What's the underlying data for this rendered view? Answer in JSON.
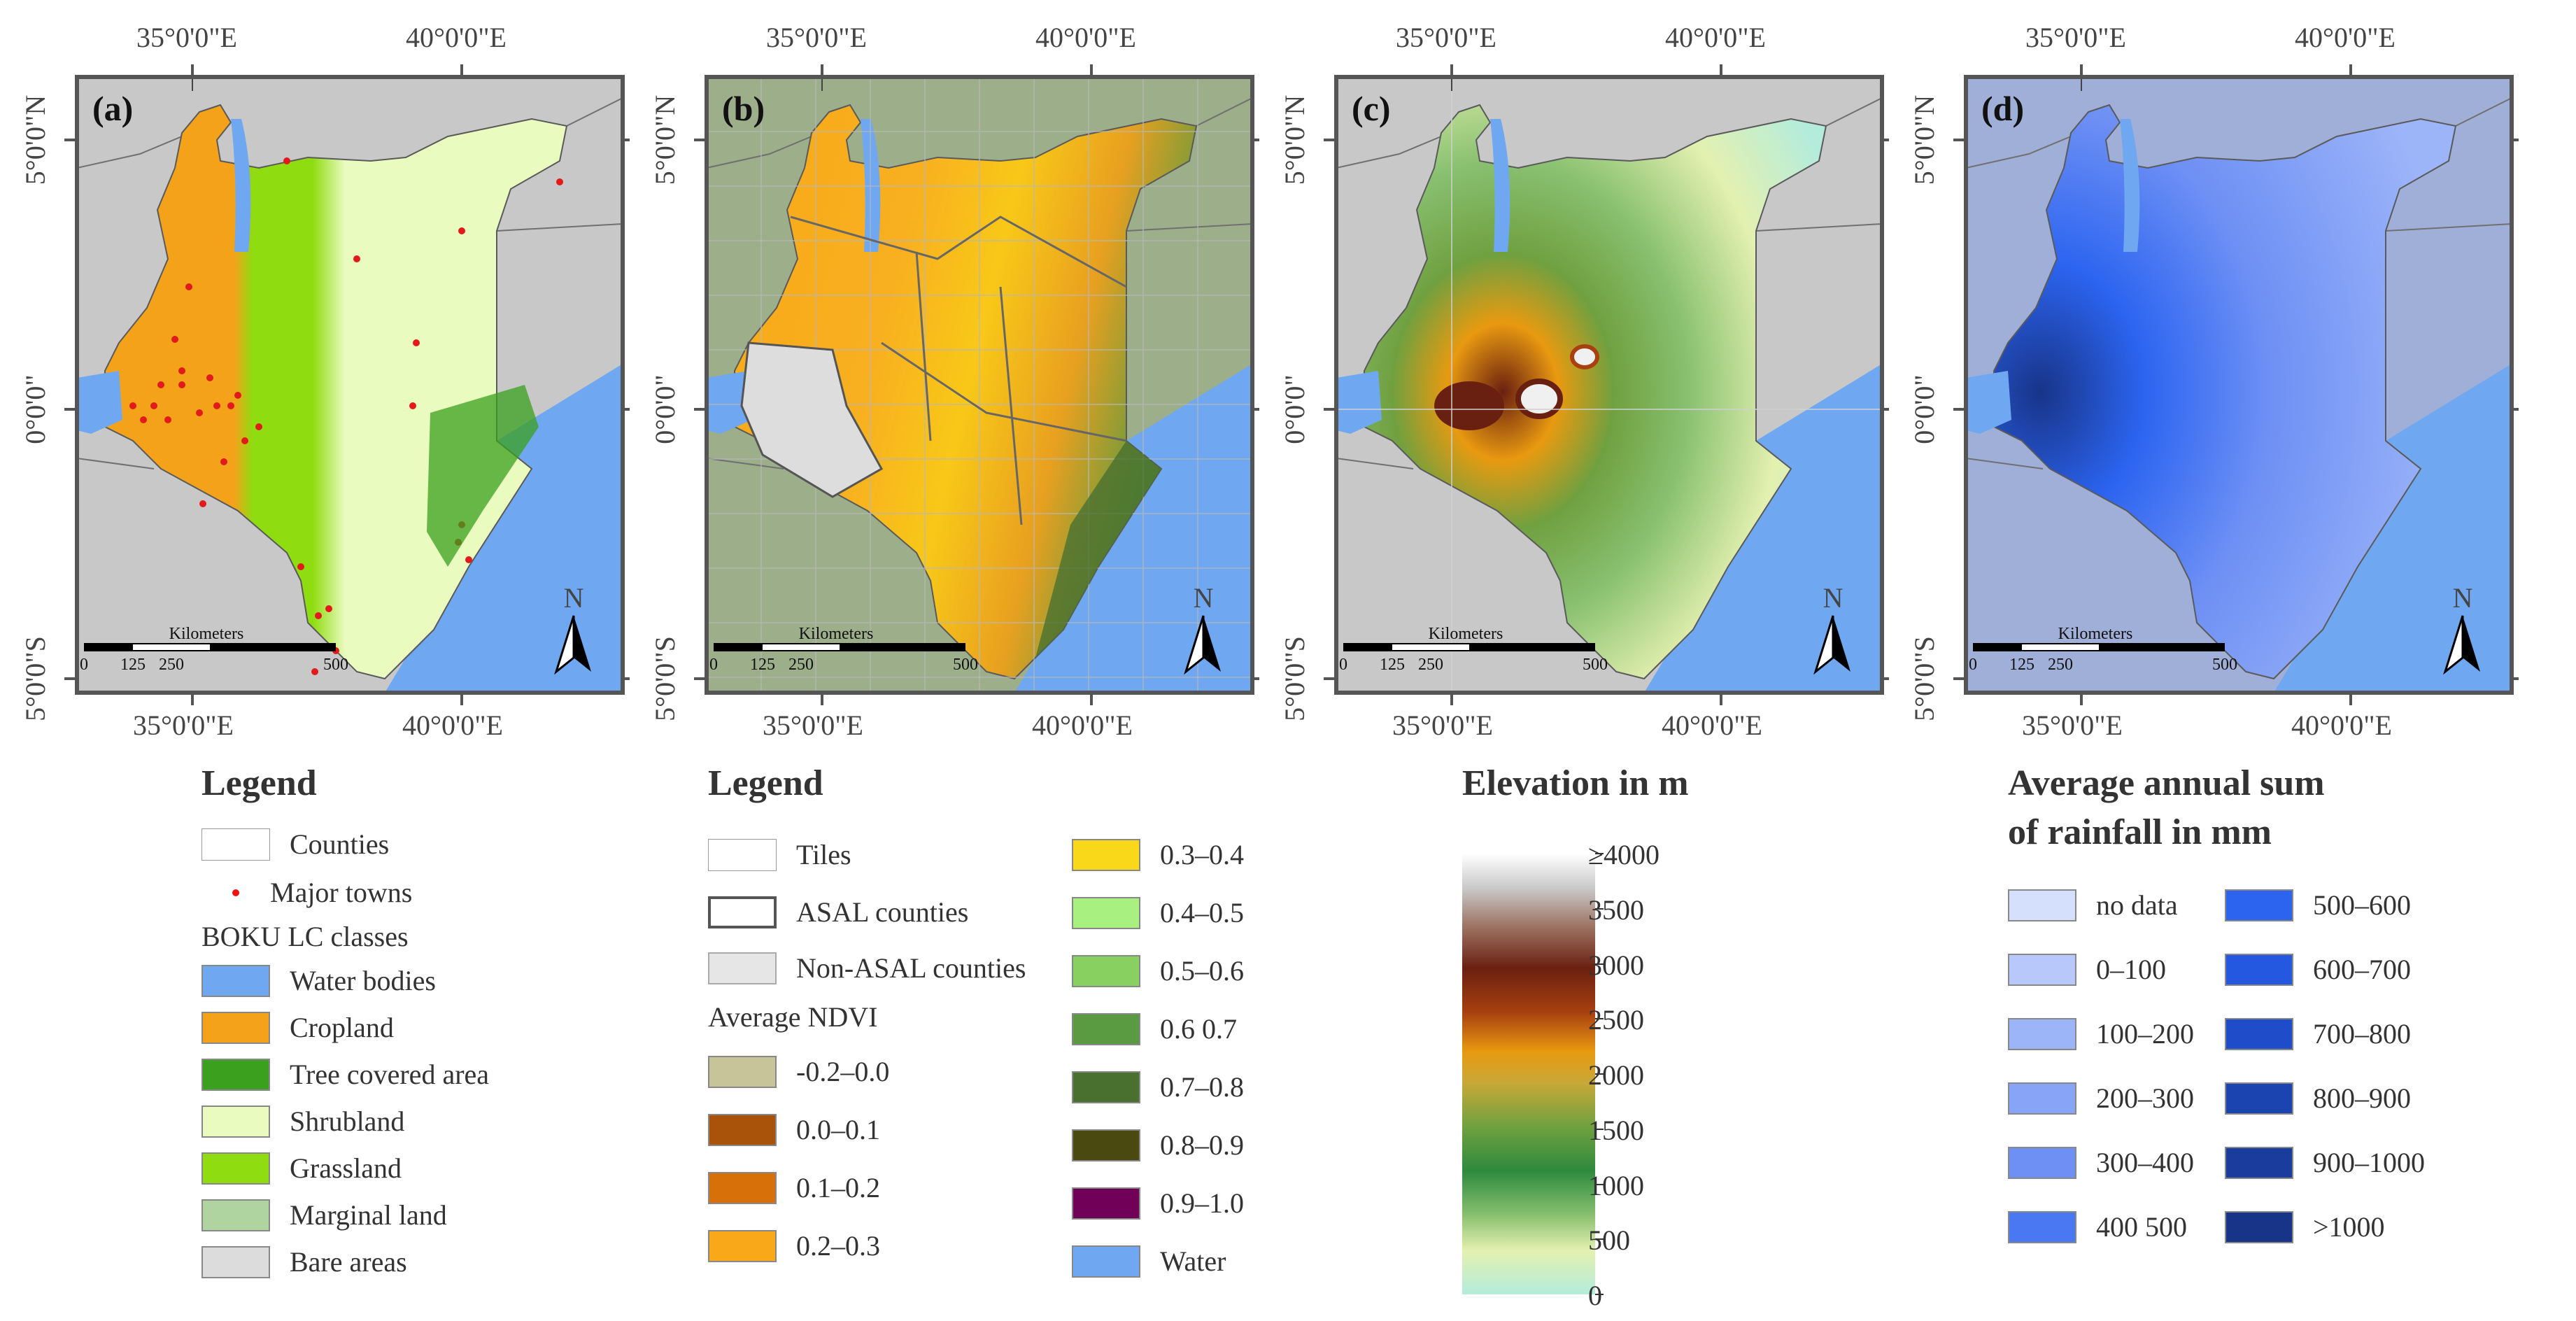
{
  "map_panels": [
    {
      "label": "(a)",
      "top_longitudes": [
        "35°0'0\"E",
        "40°0'0\"E"
      ],
      "bottom_longitudes": [
        "35°0'0\"E",
        "40°0'0\"E"
      ],
      "latitudes": [
        "5°0'0\"N",
        "0°0'0\"",
        "5°0'0\"S"
      ],
      "scale_title": "Kilometers",
      "scale_ticks": [
        "0",
        "125",
        "250",
        "500"
      ],
      "north": "N"
    },
    {
      "label": "(b)",
      "top_longitudes": [
        "35°0'0\"E",
        "40°0'0\"E"
      ],
      "bottom_longitudes": [
        "35°0'0\"E",
        "40°0'0\"E"
      ],
      "latitudes": [
        "5°0'0\"N",
        "0°0'0\"",
        "5°0'0\"S"
      ],
      "scale_title": "Kilometers",
      "scale_ticks": [
        "0",
        "125",
        "250",
        "500"
      ],
      "north": "N"
    },
    {
      "label": "(c)",
      "top_longitudes": [
        "35°0'0\"E",
        "40°0'0\"E"
      ],
      "bottom_longitudes": [
        "35°0'0\"E",
        "40°0'0\"E"
      ],
      "latitudes": [
        "5°0'0\"N",
        "0°0'0\"",
        "5°0'0\"S"
      ],
      "scale_title": "Kilometers",
      "scale_ticks": [
        "0",
        "125",
        "250",
        "500"
      ],
      "north": "N"
    },
    {
      "label": "(d)",
      "top_longitudes": [
        "35°0'0\"E",
        "40°0'0\"E"
      ],
      "bottom_longitudes": [
        "35°0'0\"E",
        "40°0'0\"E"
      ],
      "latitudes": [
        "5°0'0\"N",
        "0°0'0\"",
        "5°0'0\"S"
      ],
      "scale_title": "Kilometers",
      "scale_ticks": [
        "0",
        "125",
        "250",
        "500"
      ],
      "north": "N"
    }
  ],
  "colors": {
    "water": "#6fa8f0",
    "background_land": "#c8c8c8",
    "cropland": "#f4a21a",
    "tree_covered": "#3aa01e",
    "shrubland": "#eafbc0",
    "grassland": "#8fdc10",
    "marginal": "#b0d4a0",
    "bare": "#dcdcdc",
    "town": "#e31a1c"
  },
  "legend_a": {
    "title": "Legend",
    "counties": "Counties",
    "towns": "Major towns",
    "classes_title": "BOKU LC classes",
    "items": [
      {
        "label": "Water bodies",
        "color": "#6fa8f0"
      },
      {
        "label": "Cropland",
        "color": "#f4a21a"
      },
      {
        "label": "Tree covered area",
        "color": "#3aa01e"
      },
      {
        "label": "Shrubland",
        "color": "#eafbc0"
      },
      {
        "label": "Grassland",
        "color": "#8fdc10"
      },
      {
        "label": "Marginal land",
        "color": "#b0d4a0"
      },
      {
        "label": "Bare areas",
        "color": "#dcdcdc"
      }
    ]
  },
  "legend_b": {
    "title": "Legend",
    "tiles": "Tiles",
    "asal": "ASAL counties",
    "non_asal": "Non-ASAL counties",
    "ndvi_title": "Average NDVI",
    "col1": [
      {
        "label": "-0.2–0.0",
        "color": "#c8c49a"
      },
      {
        "label": "0.0–0.1",
        "color": "#a8520a"
      },
      {
        "label": "0.1–0.2",
        "color": "#d8700a"
      },
      {
        "label": "0.2–0.3",
        "color": "#f8a818"
      }
    ],
    "col2": [
      {
        "label": "0.3–0.4",
        "color": "#f8d818"
      },
      {
        "label": "0.4–0.5",
        "color": "#a8f080"
      },
      {
        "label": "0.5–0.6",
        "color": "#88d060"
      },
      {
        "label": "0.6 0.7",
        "color": "#5a9a40"
      },
      {
        "label": "0.7–0.8",
        "color": "#4a7030"
      },
      {
        "label": "0.8–0.9",
        "color": "#4a4a10"
      },
      {
        "label": "0.9–1.0",
        "color": "#700058"
      },
      {
        "label": "Water",
        "color": "#6fa8f0"
      }
    ]
  },
  "legend_c": {
    "title": "Elevation in m",
    "ticks": [
      "≥4000",
      "3500",
      "3000",
      "2500",
      "2000",
      "1500",
      "1000",
      "500",
      "0"
    ]
  },
  "legend_d": {
    "title_line1": "Average annual sum",
    "title_line2": "of rainfall in mm",
    "col1": [
      {
        "label": "no data",
        "color": "#d4e0fc"
      },
      {
        "label": "0–100",
        "color": "#b8c8fa"
      },
      {
        "label": "100–200",
        "color": "#9cb4f8"
      },
      {
        "label": "200–300",
        "color": "#88a4f6"
      },
      {
        "label": "300–400",
        "color": "#6e90f4"
      },
      {
        "label": "400  500",
        "color": "#4a78f2"
      }
    ],
    "col2": [
      {
        "label": "500–600",
        "color": "#2c64f0"
      },
      {
        "label": "600–700",
        "color": "#2458e0"
      },
      {
        "label": "700–800",
        "color": "#1f4cc8"
      },
      {
        "label": "800–900",
        "color": "#1c44b0"
      },
      {
        "label": "900–1000",
        "color": "#1a3c9c"
      },
      {
        "label": ">1000",
        "color": "#183488"
      }
    ]
  }
}
